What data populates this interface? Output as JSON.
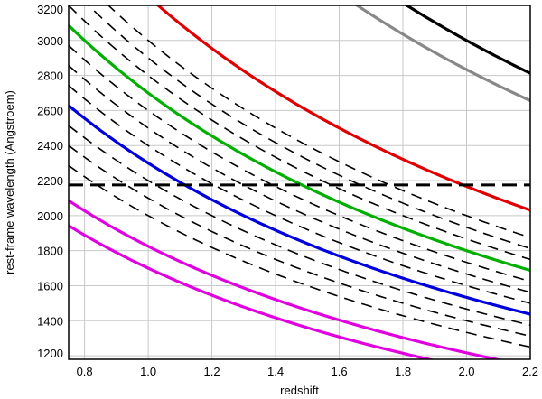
{
  "chart_data": {
    "type": "line",
    "title": "",
    "xlabel": "redshift",
    "ylabel": "rest-frame wavelength (Angstroem)",
    "xlim": [
      0.75,
      2.2
    ],
    "ylim": [
      1180,
      3200
    ],
    "grid": true,
    "x_ticks": [
      0.8,
      1.0,
      1.2,
      1.4,
      1.6,
      1.8,
      2.0,
      2.2
    ],
    "x_tick_labels": [
      "0.8",
      "1.0",
      "1.2",
      "1.4",
      "1.6",
      "1.8",
      "2.0",
      "2.2"
    ],
    "y_ticks": [
      1200,
      1400,
      1600,
      1800,
      2000,
      2200,
      2400,
      2600,
      2800,
      3000,
      3200
    ],
    "y_tick_labels": [
      "1200",
      "1400",
      "1600",
      "1800",
      "2000",
      "2200",
      "2400",
      "2600",
      "2800",
      "3000",
      "3200"
    ],
    "series": [
      {
        "observed_wavelength": 9000,
        "color": "#000000",
        "style": "solid"
      },
      {
        "observed_wavelength": 8500,
        "color": "#888888",
        "style": "solid"
      },
      {
        "observed_wavelength": 6500,
        "color": "#e00000",
        "style": "solid"
      },
      {
        "observed_wavelength": 5400,
        "color": "#00b000",
        "style": "solid"
      },
      {
        "observed_wavelength": 4600,
        "color": "#0000dd",
        "style": "solid"
      },
      {
        "observed_wavelength": 3650,
        "color": "#e000e0",
        "style": "solid"
      },
      {
        "observed_wavelength": 3400,
        "color": "#e000e0",
        "style": "solid"
      },
      {
        "observed_wavelength": 6000,
        "color": "#000000",
        "style": "dashed"
      },
      {
        "observed_wavelength": 5800,
        "color": "#000000",
        "style": "dashed"
      },
      {
        "observed_wavelength": 5600,
        "color": "#000000",
        "style": "dashed"
      },
      {
        "observed_wavelength": 5200,
        "color": "#000000",
        "style": "dashed"
      },
      {
        "observed_wavelength": 5000,
        "color": "#000000",
        "style": "dashed"
      },
      {
        "observed_wavelength": 4800,
        "color": "#000000",
        "style": "dashed"
      },
      {
        "observed_wavelength": 4400,
        "color": "#000000",
        "style": "dashed"
      },
      {
        "observed_wavelength": 4200,
        "color": "#000000",
        "style": "dashed"
      },
      {
        "observed_wavelength": 4000,
        "color": "#000000",
        "style": "dashed"
      }
    ],
    "hline": {
      "y": 2175,
      "color": "#000000",
      "style": "dashed"
    }
  }
}
